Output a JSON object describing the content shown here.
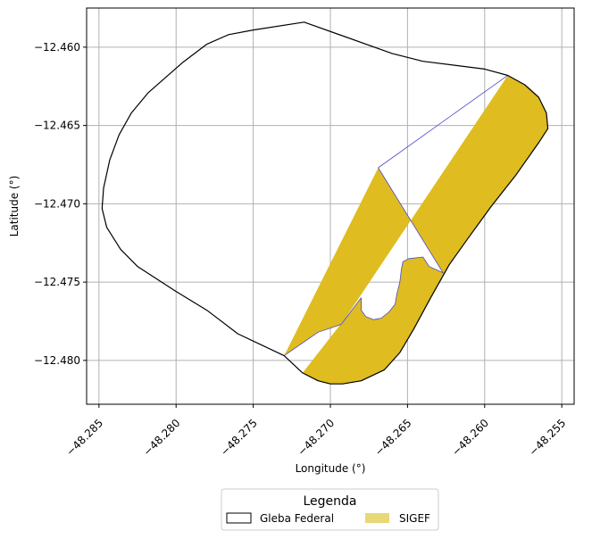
{
  "chart_data": {
    "type": "map",
    "xlabel": "Longitude (°)",
    "ylabel": "Latitude (°)",
    "xlim": [
      -48.2858,
      -48.2542
    ],
    "ylim": [
      -12.4828,
      -12.4575
    ],
    "grid": true,
    "x_ticks": [
      -48.285,
      -48.28,
      -48.275,
      -48.27,
      -48.265,
      -48.26,
      -48.255
    ],
    "x_tick_labels": [
      "−48.285",
      "−48.280",
      "−48.275",
      "−48.270",
      "−48.265",
      "−48.260",
      "−48.255"
    ],
    "y_ticks": [
      -12.46,
      -12.465,
      -12.47,
      -12.475,
      -12.48
    ],
    "y_tick_labels": [
      "−12.460",
      "−12.465",
      "−12.470",
      "−12.475",
      "−12.480"
    ],
    "legend": {
      "title": "Legenda",
      "placement": "bottom-center",
      "entries": [
        {
          "label": "Gleba Federal",
          "style": "outline",
          "color": "#000000"
        },
        {
          "label": "SIGEF",
          "style": "fill",
          "color": "#e8d878"
        }
      ]
    },
    "series": [
      {
        "name": "Gleba Federal",
        "geometry": "polygon",
        "stroke": "#000000",
        "fill": "none",
        "coords": [
          [
            -48.2717,
            -12.4584
          ],
          [
            -48.266,
            -12.4604
          ],
          [
            -48.264,
            -12.4609
          ],
          [
            -48.26,
            -12.4614
          ],
          [
            -48.2585,
            -12.4618
          ],
          [
            -48.2574,
            -12.4624
          ],
          [
            -48.2565,
            -12.4632
          ],
          [
            -48.256,
            -12.4642
          ],
          [
            -48.2559,
            -12.4652
          ],
          [
            -48.2565,
            -12.4661
          ],
          [
            -48.258,
            -12.4682
          ],
          [
            -48.2596,
            -12.4702
          ],
          [
            -48.261,
            -12.4721
          ],
          [
            -48.2623,
            -12.4739
          ],
          [
            -48.2635,
            -12.476
          ],
          [
            -48.2646,
            -12.478
          ],
          [
            -48.2655,
            -12.4795
          ],
          [
            -48.2665,
            -12.4806
          ],
          [
            -48.268,
            -12.4813
          ],
          [
            -48.2692,
            -12.4815
          ],
          [
            -48.27,
            -12.4815
          ],
          [
            -48.2708,
            -12.4813
          ],
          [
            -48.2718,
            -12.4808
          ],
          [
            -48.273,
            -12.4797
          ],
          [
            -48.276,
            -12.4783
          ],
          [
            -48.278,
            -12.4768
          ],
          [
            -48.28,
            -12.4756
          ],
          [
            -48.2825,
            -12.474
          ],
          [
            -48.2836,
            -12.4729
          ],
          [
            -48.2845,
            -12.4715
          ],
          [
            -48.2848,
            -12.4703
          ],
          [
            -48.2847,
            -12.469
          ],
          [
            -48.2843,
            -12.4672
          ],
          [
            -48.2837,
            -12.4656
          ],
          [
            -48.2829,
            -12.4642
          ],
          [
            -48.2818,
            -12.4629
          ],
          [
            -48.2796,
            -12.461
          ],
          [
            -48.278,
            -12.4598
          ],
          [
            -48.2766,
            -12.4592
          ],
          [
            -48.275,
            -12.4589
          ]
        ]
      },
      {
        "name": "SIGEF",
        "geometry": "polygon",
        "stroke": "#4a4ac8",
        "fill": "#dfbc1f",
        "outer_coords": [
          [
            -48.273,
            -12.4797
          ],
          [
            -48.2708,
            -12.4782
          ],
          [
            -48.2693,
            -12.4777
          ],
          [
            -48.2585,
            -12.4618
          ],
          [
            -48.2574,
            -12.4624
          ],
          [
            -48.2565,
            -12.4632
          ],
          [
            -48.256,
            -12.4642
          ],
          [
            -48.2559,
            -12.4652
          ],
          [
            -48.2565,
            -12.4661
          ],
          [
            -48.258,
            -12.4682
          ],
          [
            -48.2596,
            -12.4702
          ],
          [
            -48.261,
            -12.4721
          ],
          [
            -48.2623,
            -12.4739
          ],
          [
            -48.2635,
            -12.476
          ],
          [
            -48.2646,
            -12.478
          ],
          [
            -48.2655,
            -12.4795
          ],
          [
            -48.2665,
            -12.4806
          ],
          [
            -48.268,
            -12.4813
          ],
          [
            -48.2692,
            -12.4815
          ],
          [
            -48.27,
            -12.4815
          ],
          [
            -48.2708,
            -12.4813
          ],
          [
            -48.2718,
            -12.4808
          ]
        ],
        "inner_coords": [
          [
            -48.268,
            -12.476
          ],
          [
            -48.268,
            -12.4768
          ],
          [
            -48.2677,
            -12.4772
          ],
          [
            -48.2672,
            -12.4774
          ],
          [
            -48.2667,
            -12.4773
          ],
          [
            -48.2662,
            -12.4769
          ],
          [
            -48.2658,
            -12.4764
          ],
          [
            -48.2657,
            -12.4758
          ],
          [
            -48.2655,
            -12.475
          ],
          [
            -48.2654,
            -12.4742
          ],
          [
            -48.2653,
            -12.4737
          ],
          [
            -48.2649,
            -12.4735
          ],
          [
            -48.264,
            -12.4734
          ],
          [
            -48.2636,
            -12.474
          ],
          [
            -48.2627,
            -12.4744
          ],
          [
            -48.2669,
            -12.4677
          ]
        ]
      }
    ]
  }
}
